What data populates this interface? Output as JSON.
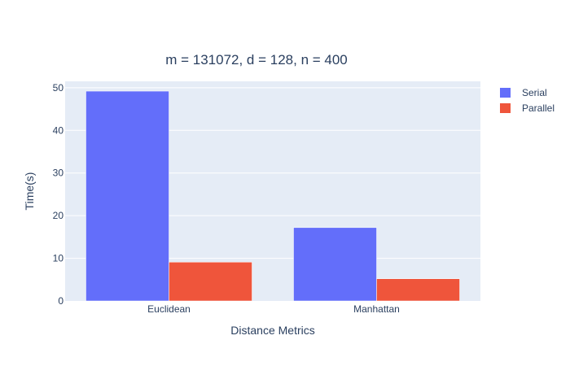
{
  "colors": {
    "plot_bg": "#e5ecf6",
    "grid": "#ffffff",
    "serial": "#636efa",
    "parallel": "#ef553b"
  },
  "chart_data": {
    "type": "bar",
    "title": "m = 131072, d = 128, n = 400",
    "xlabel": "Distance Metrics",
    "ylabel": "Time(s)",
    "categories": [
      "Euclidean",
      "Manhattan"
    ],
    "series": [
      {
        "name": "Serial",
        "values": [
          49.2,
          17.2
        ]
      },
      {
        "name": "Parallel",
        "values": [
          9.1,
          5.2
        ]
      }
    ],
    "ylim": [
      0,
      51.5
    ],
    "yticks": [
      0,
      10,
      20,
      30,
      40,
      50
    ],
    "grid": true,
    "legend_position": "top-right"
  }
}
